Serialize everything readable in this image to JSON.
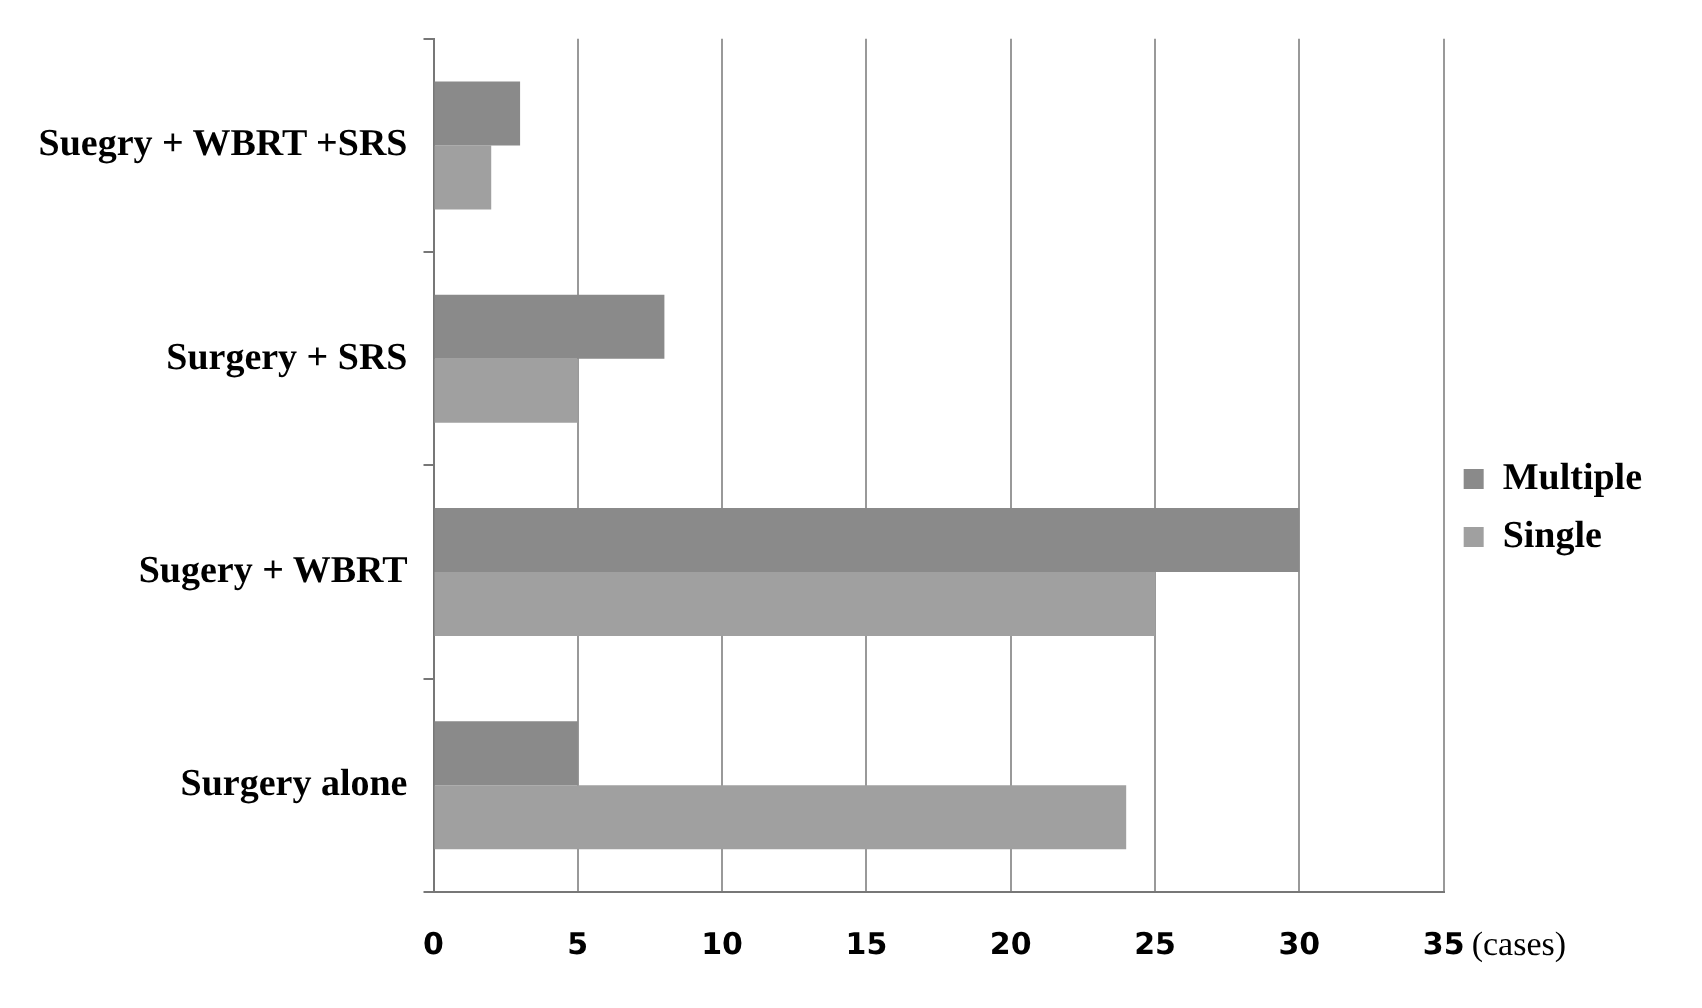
{
  "chart_data": {
    "type": "bar",
    "orientation": "horizontal",
    "xlabel": "(cases)",
    "categories": [
      "Suegry + WBRT +SRS",
      "Surgery + SRS",
      "Sugery + WBRT",
      "Surgery alone"
    ],
    "series": [
      {
        "name": "Multiple",
        "color": "#8a8a8a",
        "values": [
          3,
          8,
          30,
          5
        ]
      },
      {
        "name": "Single",
        "color": "#a0a0a0",
        "values": [
          2,
          5,
          25,
          24
        ]
      }
    ],
    "xlim": [
      0,
      35
    ],
    "xticks": [
      0,
      5,
      10,
      15,
      20,
      25,
      30,
      35
    ],
    "grid": "x",
    "legend": "right"
  }
}
